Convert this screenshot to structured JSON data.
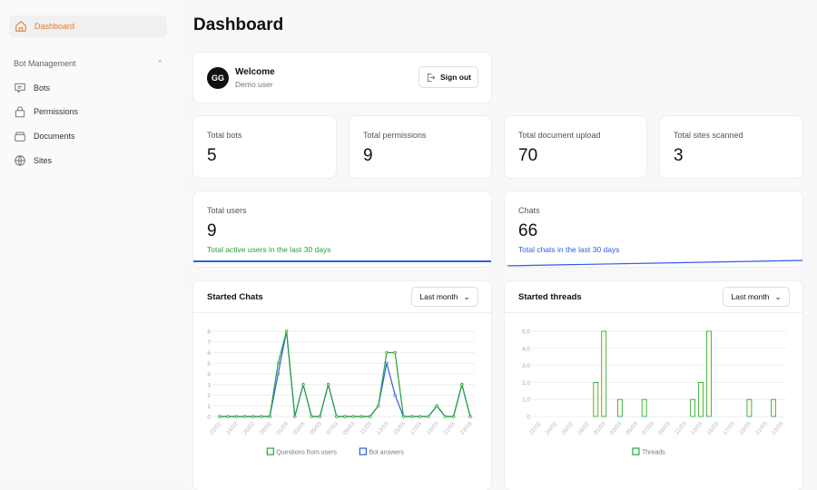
{
  "sidebar": {
    "dashboard": "Dashboard",
    "section": "Bot Management",
    "items": [
      {
        "label": "Bots",
        "icon": "chat-icon"
      },
      {
        "label": "Permissions",
        "icon": "lock-icon"
      },
      {
        "label": "Documents",
        "icon": "archive-icon"
      },
      {
        "label": "Sites",
        "icon": "globe-icon"
      }
    ]
  },
  "page_title": "Dashboard",
  "welcome": {
    "initials": "GG",
    "title": "Welcome",
    "subtitle": "Demo user",
    "signout": "Sign out"
  },
  "stats": [
    {
      "label": "Total bots",
      "value": "5"
    },
    {
      "label": "Total permissions",
      "value": "9"
    },
    {
      "label": "Total document upload",
      "value": "70"
    },
    {
      "label": "Total sites scanned",
      "value": "3"
    }
  ],
  "users": {
    "label": "Total users",
    "value": "9",
    "note": "Total active users in the last 30 days"
  },
  "chats": {
    "label": "Chats",
    "value": "66",
    "note": "Total chats in the last 30 days"
  },
  "colors": {
    "accent": "#e07b2e",
    "green": "#22a33a",
    "blue": "#2f5bea",
    "bar_fill": "#fdf8e6"
  },
  "started_chats": {
    "title": "Started Chats",
    "range": "Last month"
  },
  "started_threads": {
    "title": "Started threads",
    "range": "Last month"
  },
  "chart_data": [
    {
      "type": "line",
      "title": "Started Chats",
      "x": [
        "22/02",
        "23/02",
        "24/02",
        "25/02",
        "26/02",
        "27/02",
        "28/02",
        "29/02",
        "01/03",
        "02/03",
        "03/03",
        "04/03",
        "05/03",
        "06/03",
        "07/03",
        "08/03",
        "09/03",
        "10/03",
        "11/03",
        "12/03",
        "13/03",
        "14/03",
        "15/03",
        "16/03",
        "17/03",
        "18/03",
        "19/03",
        "20/03",
        "21/03",
        "22/03",
        "23/03"
      ],
      "tick_labels": [
        "22/02",
        "24/02",
        "26/02",
        "28/02",
        "01/03",
        "03/03",
        "05/03",
        "07/03",
        "09/03",
        "11/03",
        "13/03",
        "15/03",
        "17/03",
        "19/03",
        "21/03",
        "23/03"
      ],
      "yticks": [
        "0",
        "1",
        "2",
        "3",
        "4",
        "5",
        "6",
        "7",
        "8"
      ],
      "ylim": [
        0,
        8
      ],
      "grid": true,
      "legend": "bottom",
      "series": [
        {
          "name": "Questions from users",
          "color": "#22a33a",
          "values": [
            0,
            0,
            0,
            0,
            0,
            0,
            0,
            5,
            8,
            0,
            3,
            0,
            0,
            3,
            0,
            0,
            0,
            0,
            0,
            1,
            6,
            6,
            0,
            0,
            0,
            0,
            1,
            0,
            0,
            3,
            0
          ]
        },
        {
          "name": "Bot answers",
          "color": "#2f5bea",
          "values": [
            0,
            0,
            0,
            0,
            0,
            0,
            0,
            4,
            8,
            0,
            3,
            0,
            0,
            3,
            0,
            0,
            0,
            0,
            0,
            1,
            5,
            2,
            0,
            0,
            0,
            0,
            1,
            0,
            0,
            3,
            0
          ]
        }
      ]
    },
    {
      "type": "bar",
      "title": "Started threads",
      "x": [
        "22/02",
        "23/02",
        "24/02",
        "25/02",
        "26/02",
        "27/02",
        "28/02",
        "29/02",
        "01/03",
        "02/03",
        "03/03",
        "04/03",
        "05/03",
        "06/03",
        "07/03",
        "08/03",
        "09/03",
        "10/03",
        "11/03",
        "12/03",
        "13/03",
        "14/03",
        "15/03",
        "16/03",
        "17/03",
        "18/03",
        "19/03",
        "20/03",
        "21/03",
        "22/03",
        "23/03"
      ],
      "tick_labels": [
        "22/02",
        "24/02",
        "26/02",
        "28/02",
        "01/03",
        "03/03",
        "05/03",
        "07/03",
        "09/03",
        "11/03",
        "13/03",
        "15/03",
        "17/03",
        "19/03",
        "21/03",
        "23/03"
      ],
      "yticks": [
        "0",
        "1,0",
        "2,0",
        "3,0",
        "4,0",
        "5,0"
      ],
      "ylim": [
        0,
        5
      ],
      "grid": true,
      "legend": "bottom",
      "series": [
        {
          "name": "Threads",
          "color": "#22a33a",
          "values": [
            0,
            0,
            0,
            0,
            0,
            0,
            0,
            2,
            5,
            0,
            1,
            0,
            0,
            1,
            0,
            0,
            0,
            0,
            0,
            1,
            2,
            5,
            0,
            0,
            0,
            0,
            1,
            0,
            0,
            1,
            0
          ]
        }
      ]
    }
  ]
}
